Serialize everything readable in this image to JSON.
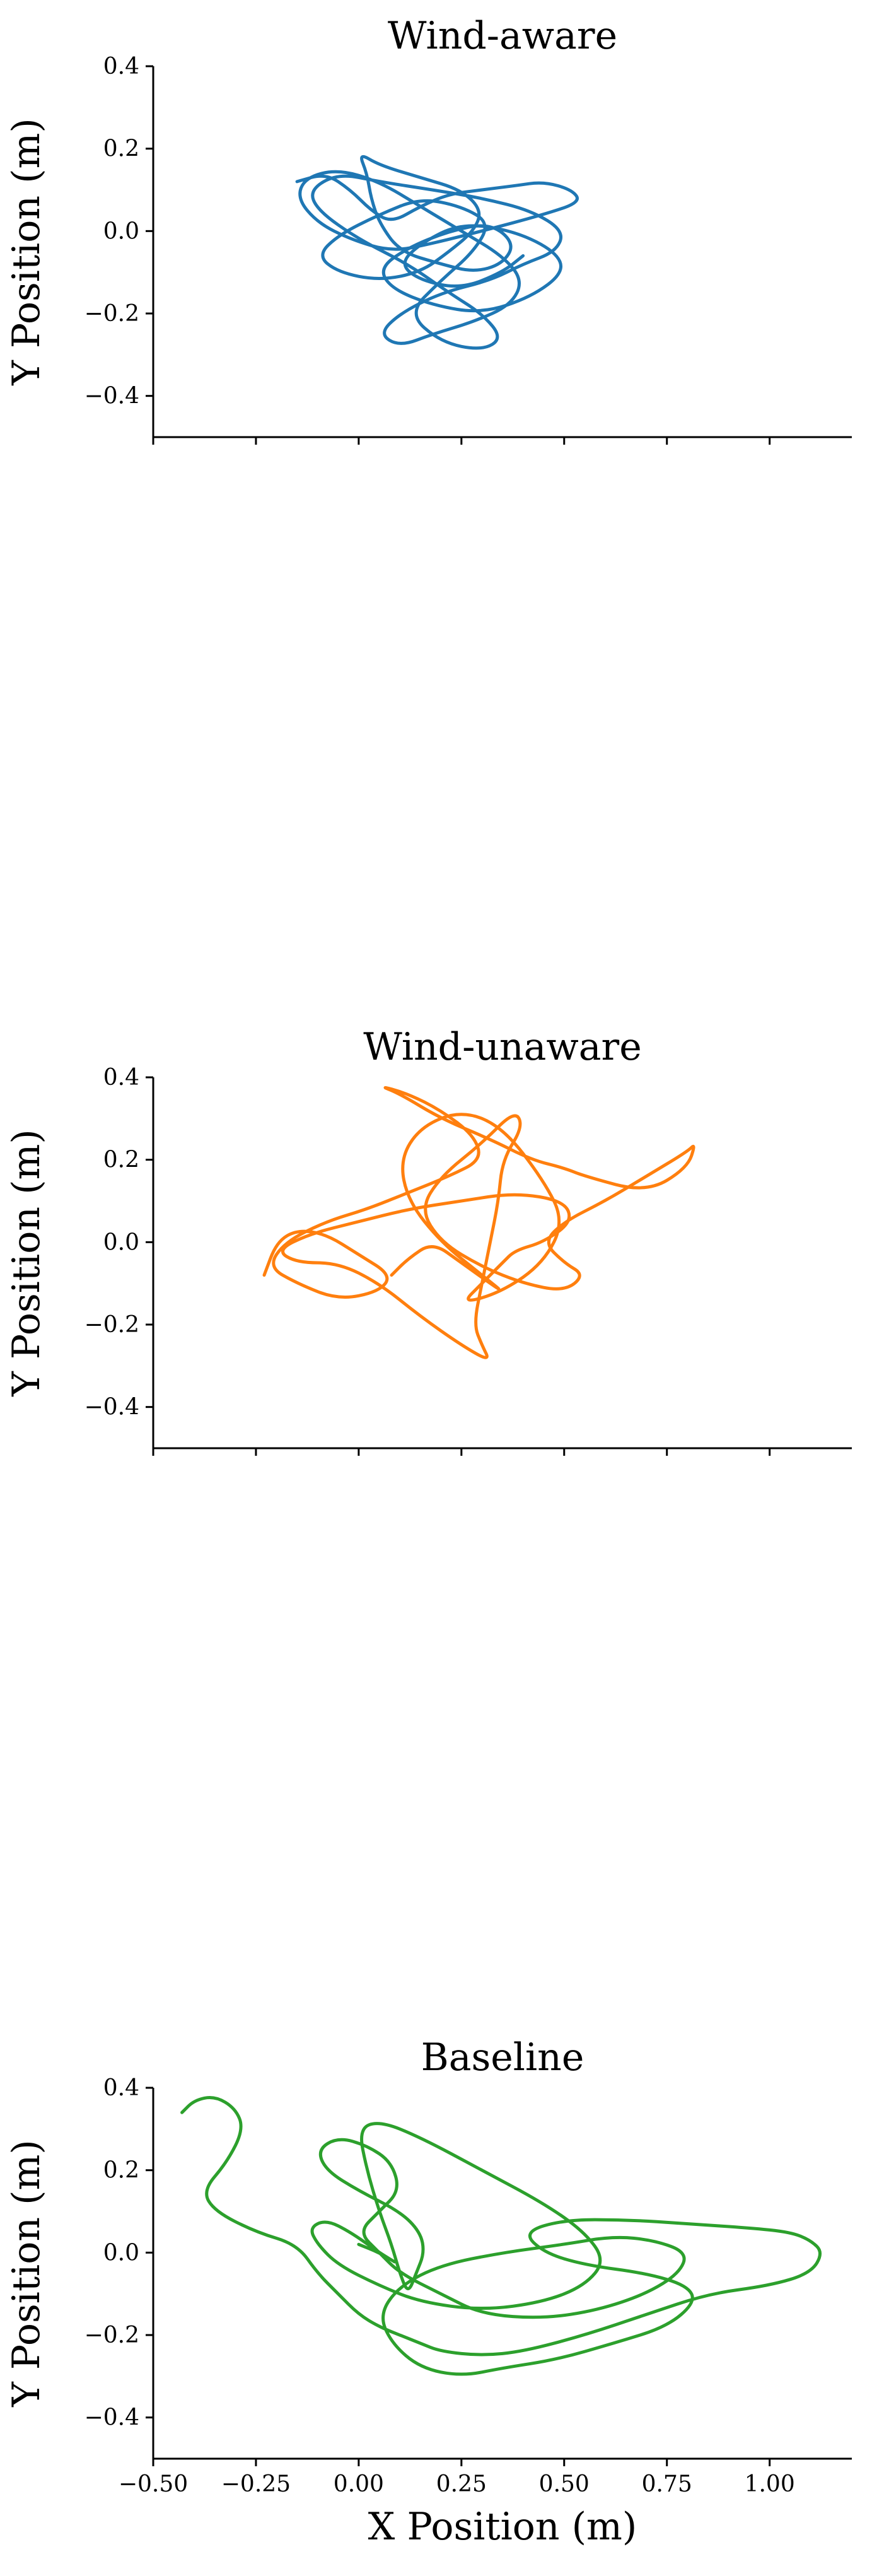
{
  "chart_data": [
    {
      "type": "line",
      "title": "Wind-aware",
      "xlabel": "",
      "ylabel": "Y Position (m)",
      "xlim": [
        -0.5,
        1.2
      ],
      "ylim": [
        -0.5,
        0.4
      ],
      "x_ticks": [
        -0.5,
        -0.25,
        0.0,
        0.25,
        0.5,
        0.75,
        1.0
      ],
      "x_tick_labels_visible": false,
      "y_ticks": [
        0.4,
        0.2,
        0.0,
        -0.2,
        -0.4
      ],
      "y_tick_labels": [
        "0.4",
        "0.2",
        "0.0",
        "−0.2",
        "−0.4"
      ],
      "grid": false,
      "series": [
        {
          "color": "#1f77b4",
          "x": [
            -0.15,
            -0.08,
            -0.02,
            0.03,
            0.08,
            0.15,
            0.22,
            0.3,
            0.38,
            0.45,
            0.52,
            0.54,
            0.45,
            0.3,
            0.18,
            0.08,
            -0.02,
            -0.1,
            -0.15,
            -0.13,
            -0.05,
            0.05,
            0.15,
            0.25,
            0.35,
            0.4,
            0.37,
            0.28,
            0.18,
            0.1,
            0.05,
            0.1,
            0.2,
            0.32,
            0.4,
            0.48,
            0.5,
            0.42,
            0.3,
            0.18,
            0.05,
            -0.05,
            -0.12,
            -0.1,
            0.0,
            0.12,
            0.22,
            0.3,
            0.35,
            0.3,
            0.2,
            0.12,
            0.2,
            0.28,
            0.32,
            0.25,
            0.15,
            0.05,
            -0.05,
            -0.1,
            -0.05,
            0.05,
            0.15,
            0.22,
            0.28,
            0.3,
            0.25,
            0.15,
            0.05,
            0.0,
            0.02,
            0.03,
            0.05,
            0.1,
            0.2,
            0.28,
            0.35,
            0.38,
            0.32,
            0.22,
            0.12,
            0.05,
            0.08,
            0.18,
            0.3,
            0.42,
            0.5,
            0.48,
            0.38,
            0.25,
            0.15,
            0.1,
            0.15,
            0.25,
            0.35,
            0.4
          ],
          "y": [
            0.12,
            0.14,
            0.1,
            0.05,
            0.02,
            0.06,
            0.09,
            0.1,
            0.11,
            0.12,
            0.1,
            0.07,
            0.04,
            0.0,
            -0.03,
            -0.05,
            -0.02,
            0.02,
            0.08,
            0.13,
            0.15,
            0.12,
            0.06,
            0.0,
            -0.06,
            -0.12,
            -0.18,
            -0.22,
            -0.25,
            -0.28,
            -0.25,
            -0.2,
            -0.15,
            -0.12,
            -0.08,
            -0.05,
            0.0,
            0.05,
            0.08,
            0.1,
            0.12,
            0.14,
            0.1,
            0.05,
            -0.02,
            -0.08,
            -0.15,
            -0.2,
            -0.26,
            -0.29,
            -0.27,
            -0.2,
            -0.12,
            -0.05,
            0.02,
            0.06,
            0.08,
            0.04,
            -0.01,
            -0.06,
            -0.1,
            -0.12,
            -0.1,
            -0.05,
            0.0,
            0.05,
            0.1,
            0.13,
            0.16,
            0.19,
            0.14,
            0.08,
            0.02,
            -0.05,
            -0.08,
            -0.1,
            -0.08,
            -0.03,
            0.02,
            0.0,
            -0.04,
            -0.09,
            -0.14,
            -0.18,
            -0.2,
            -0.16,
            -0.1,
            -0.05,
            0.0,
            0.02,
            -0.03,
            -0.08,
            -0.12,
            -0.14,
            -0.1,
            -0.06
          ]
        }
      ]
    },
    {
      "type": "line",
      "title": "Wind-unaware",
      "xlabel": "",
      "ylabel": "Y Position (m)",
      "xlim": [
        -0.5,
        1.2
      ],
      "ylim": [
        -0.5,
        0.4
      ],
      "x_ticks": [
        -0.5,
        -0.25,
        0.0,
        0.25,
        0.5,
        0.75,
        1.0
      ],
      "x_tick_labels_visible": false,
      "y_ticks": [
        0.4,
        0.2,
        0.0,
        -0.2,
        -0.4
      ],
      "y_tick_labels": [
        "0.4",
        "0.2",
        "0.0",
        "−0.2",
        "−0.4"
      ],
      "grid": false,
      "series": [
        {
          "color": "#ff7f0e",
          "x": [
            -0.23,
            -0.2,
            -0.15,
            -0.08,
            0.0,
            0.08,
            0.05,
            -0.05,
            -0.15,
            -0.22,
            -0.18,
            -0.08,
            0.02,
            0.12,
            0.22,
            0.3,
            0.28,
            0.2,
            0.12,
            0.05,
            0.1,
            0.2,
            0.32,
            0.42,
            0.5,
            0.55,
            0.7,
            0.8,
            0.82,
            0.8,
            0.7,
            0.6,
            0.5,
            0.45,
            0.5,
            0.55,
            0.5,
            0.4,
            0.3,
            0.2,
            0.15,
            0.2,
            0.3,
            0.38,
            0.4,
            0.35,
            0.34,
            0.32,
            0.3,
            0.28,
            0.3,
            0.32,
            0.25,
            0.15,
            0.05,
            -0.05,
            -0.15,
            -0.2,
            -0.12,
            0.0,
            0.12,
            0.25,
            0.38,
            0.5,
            0.52,
            0.45,
            0.38,
            0.35,
            0.3,
            0.25,
            0.35,
            0.45,
            0.5,
            0.45,
            0.35,
            0.25,
            0.15,
            0.1,
            0.12,
            0.2,
            0.3,
            0.35,
            0.32,
            0.25,
            0.18,
            0.12,
            0.08
          ],
          "y": [
            -0.08,
            0.0,
            0.03,
            0.02,
            -0.03,
            -0.08,
            -0.12,
            -0.14,
            -0.1,
            -0.06,
            0.0,
            0.05,
            0.08,
            0.12,
            0.16,
            0.2,
            0.26,
            0.32,
            0.36,
            0.38,
            0.36,
            0.3,
            0.25,
            0.2,
            0.18,
            0.16,
            0.12,
            0.18,
            0.24,
            0.22,
            0.16,
            0.1,
            0.05,
            0.0,
            -0.05,
            -0.08,
            -0.12,
            -0.1,
            -0.06,
            0.0,
            0.08,
            0.16,
            0.24,
            0.32,
            0.28,
            0.2,
            0.1,
            0.0,
            -0.1,
            -0.2,
            -0.25,
            -0.29,
            -0.25,
            -0.18,
            -0.1,
            -0.05,
            -0.05,
            -0.02,
            0.02,
            0.05,
            0.08,
            0.1,
            0.12,
            0.1,
            0.05,
            0.0,
            -0.02,
            -0.05,
            -0.1,
            -0.15,
            -0.12,
            -0.05,
            0.05,
            0.15,
            0.28,
            0.32,
            0.28,
            0.2,
            0.1,
            0.0,
            -0.08,
            -0.12,
            -0.1,
            -0.05,
            0.0,
            -0.04,
            -0.08
          ]
        }
      ]
    },
    {
      "type": "line",
      "title": "Baseline",
      "xlabel": "X Position (m)",
      "ylabel": "Y Position (m)",
      "xlim": [
        -0.5,
        1.2
      ],
      "ylim": [
        -0.5,
        0.4
      ],
      "x_ticks": [
        -0.5,
        -0.25,
        0.0,
        0.25,
        0.5,
        0.75,
        1.0
      ],
      "x_tick_labels_visible": true,
      "x_tick_labels": [
        "−0.50",
        "−0.25",
        "0.00",
        "0.25",
        "0.50",
        "0.75",
        "1.00"
      ],
      "y_ticks": [
        0.4,
        0.2,
        0.0,
        -0.2,
        -0.4
      ],
      "y_tick_labels": [
        "0.4",
        "0.2",
        "0.0",
        "−0.2",
        "−0.4"
      ],
      "grid": false,
      "series": [
        {
          "color": "#2ca02c",
          "x": [
            -0.43,
            -0.4,
            -0.35,
            -0.3,
            -0.28,
            -0.32,
            -0.38,
            -0.35,
            -0.25,
            -0.15,
            -0.1,
            -0.05,
            0.0,
            0.05,
            0.1,
            0.15,
            0.2,
            0.3,
            0.4,
            0.55,
            0.7,
            0.85,
            1.0,
            1.1,
            1.13,
            1.1,
            1.05,
            0.95,
            0.8,
            0.65,
            0.5,
            0.4,
            0.45,
            0.55,
            0.7,
            0.8,
            0.82,
            0.75,
            0.62,
            0.48,
            0.35,
            0.25,
            0.15,
            0.08,
            0.05,
            0.1,
            0.2,
            0.35,
            0.5,
            0.62,
            0.72,
            0.8,
            0.78,
            0.7,
            0.58,
            0.45,
            0.3,
            0.2,
            0.1,
            0.05,
            0.0,
            0.05,
            0.1,
            0.08,
            0.02,
            -0.05,
            -0.1,
            -0.08,
            0.0,
            0.1,
            0.15,
            0.16,
            0.14,
            0.12,
            0.1,
            0.08,
            0.05,
            0.02,
            0.0,
            0.05,
            0.15,
            0.3,
            0.45,
            0.55,
            0.6,
            0.55,
            0.45,
            0.3,
            0.15,
            0.05,
            -0.05,
            -0.1,
            -0.12,
            -0.08,
            -0.02,
            0.05,
            0.1,
            0.05,
            0.0
          ],
          "y": [
            0.34,
            0.37,
            0.38,
            0.35,
            0.3,
            0.22,
            0.15,
            0.1,
            0.05,
            0.02,
            -0.05,
            -0.1,
            -0.15,
            -0.18,
            -0.2,
            -0.22,
            -0.24,
            -0.25,
            -0.24,
            -0.2,
            -0.15,
            -0.1,
            -0.08,
            -0.05,
            0.0,
            0.03,
            0.05,
            0.06,
            0.07,
            0.08,
            0.08,
            0.05,
            0.0,
            -0.03,
            -0.05,
            -0.08,
            -0.12,
            -0.18,
            -0.22,
            -0.26,
            -0.28,
            -0.3,
            -0.28,
            -0.22,
            -0.15,
            -0.08,
            -0.03,
            0.0,
            0.02,
            0.04,
            0.03,
            0.0,
            -0.05,
            -0.1,
            -0.14,
            -0.16,
            -0.15,
            -0.1,
            -0.05,
            0.0,
            0.05,
            0.1,
            0.15,
            0.22,
            0.26,
            0.28,
            0.25,
            0.2,
            0.15,
            0.1,
            0.05,
            0.0,
            -0.05,
            -0.1,
            -0.05,
            0.02,
            0.1,
            0.2,
            0.3,
            0.32,
            0.28,
            0.2,
            0.12,
            0.05,
            -0.02,
            -0.08,
            -0.12,
            -0.14,
            -0.12,
            -0.08,
            -0.03,
            0.02,
            0.06,
            0.08,
            0.05,
            0.0,
            -0.03,
            0.0,
            0.02
          ]
        }
      ]
    }
  ]
}
